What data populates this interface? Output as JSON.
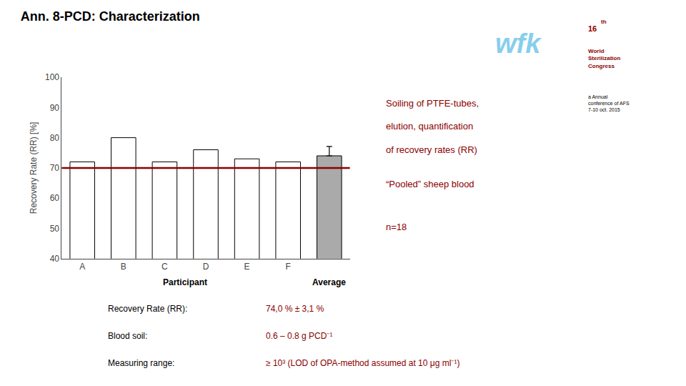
{
  "chart_data": {
    "type": "bar",
    "title": "Ann. 8-PCD: Characterization",
    "categories": [
      "A",
      "B",
      "C",
      "D",
      "E",
      "F",
      null
    ],
    "values": [
      72,
      80,
      72,
      76,
      73,
      72,
      74.0
    ],
    "colors": [
      "#FFFFFF",
      "#FFFFFF",
      "#FFFFFF",
      "#FFFFFF",
      "#FFFFFF",
      "#FFFFFF",
      "#AAAAAA"
    ],
    "edge_color": "#000000",
    "error_upper": [
      null,
      null,
      null,
      null,
      null,
      null,
      3.1
    ],
    "ylim": [
      40,
      100
    ],
    "yticks": [
      40,
      50,
      60,
      70,
      80,
      90,
      100
    ],
    "ylabel": "Recovery Rate (RR) [%]",
    "grid": false,
    "hline": {
      "y": 70,
      "color": "#8B0000"
    },
    "group_labels": [
      "Participant",
      "Average"
    ],
    "notes": [
      "Soiling of PTFE-tubes,",
      "elution, quantification",
      "of recovery rates (RR)",
      "“Pooled” sheep blood",
      "n=18"
    ],
    "note_color": "#8B0000",
    "info": [
      {
        "label": "Recovery Rate (RR):",
        "value": "74,0 % ± 3,1 %"
      },
      {
        "label": "Blood soil:",
        "value": "0.6 – 0.8 g PCD⁻¹"
      },
      {
        "label": "Measuring range:",
        "value": "≥ 10³ (LOD of OPA-method assumed at 10 μg ml⁻¹)"
      }
    ],
    "info_value_color": "#8B0000",
    "text_color": "#000000",
    "logo": {
      "text": "wfk",
      "color": "#87CEEB"
    },
    "badge": {
      "number": "16",
      "suffix": "th",
      "name": "World\nSterilization\nCongress",
      "color": "#8B0000",
      "details": "a Annual\nconference of AFS\n7-10 oct. 2015"
    }
  }
}
